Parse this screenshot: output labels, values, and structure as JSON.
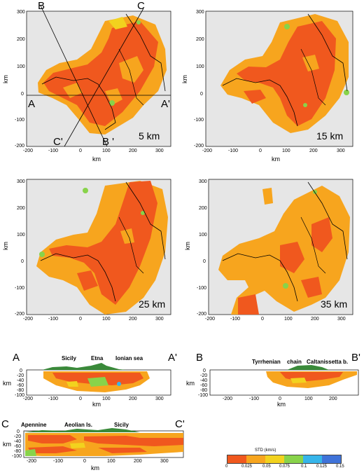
{
  "maps": [
    {
      "id": "map-5km",
      "depth_label": "5 km",
      "x_ticks": [
        "-200",
        "-100",
        "0",
        "100",
        "200",
        "300"
      ],
      "y_ticks": [
        "300",
        "200",
        "100",
        "0",
        "-100",
        "-200"
      ],
      "xlabel": "km",
      "ylabel": "km",
      "section_letters": [
        "A",
        "A'",
        "B",
        "B '",
        "C",
        "C'"
      ]
    },
    {
      "id": "map-15km",
      "depth_label": "15 km",
      "x_ticks": [
        "-200",
        "-100",
        "0",
        "100",
        "200",
        "300"
      ],
      "y_ticks": [
        "300",
        "200",
        "100",
        "0",
        "-100",
        "-200"
      ],
      "xlabel": "km",
      "ylabel": "km"
    },
    {
      "id": "map-25km",
      "depth_label": "25 km",
      "x_ticks": [
        "-200",
        "-100",
        "0",
        "100",
        "200",
        "300"
      ],
      "y_ticks": [
        "300",
        "200",
        "100",
        "0",
        "-100",
        "-200"
      ],
      "xlabel": "km",
      "ylabel": "km"
    },
    {
      "id": "map-35km",
      "depth_label": "35 km",
      "x_ticks": [
        "-200",
        "-100",
        "0",
        "100",
        "200",
        "300"
      ],
      "y_ticks": [
        "300",
        "200",
        "100",
        "0",
        "-100",
        "-200"
      ],
      "xlabel": "km",
      "ylabel": "km"
    }
  ],
  "sections": [
    {
      "id": "section-AA",
      "start": "A",
      "end": "A'",
      "labels": [
        "Sicily",
        "Etna",
        "Ionian sea"
      ],
      "x_ticks": [
        "-200",
        "-100",
        "0",
        "100",
        "200",
        "300"
      ],
      "y_ticks": [
        "0",
        "-20",
        "-40",
        "-60",
        "-80",
        "-100"
      ],
      "xlabel": "km",
      "ylabel": "km"
    },
    {
      "id": "section-BB",
      "start": "B",
      "end": "B'",
      "labels": [
        "Tyrrhenian",
        "chain",
        "Caltanissetta b."
      ],
      "x_ticks": [
        "-200",
        "-100",
        "0",
        "100",
        "200"
      ],
      "y_ticks": [
        "0",
        "-20",
        "-40",
        "-60",
        "-80",
        "-100"
      ],
      "xlabel": "km",
      "ylabel": "km"
    },
    {
      "id": "section-CC",
      "start": "C",
      "end": "C'",
      "labels": [
        "Apennine",
        "Aeolian Is.",
        "Sicily"
      ],
      "x_ticks": [
        "-200",
        "-100",
        "0",
        "100",
        "200",
        "300"
      ],
      "y_ticks": [
        "0",
        "-20",
        "-40",
        "-60",
        "-80",
        "-100"
      ],
      "xlabel": "km",
      "ylabel": "km"
    }
  ],
  "legend": {
    "title": "STD (km/s)",
    "ticks": [
      "0",
      "0.025",
      "0.05",
      "0.075",
      "0.1",
      "0.125",
      "0.15"
    ],
    "colors": [
      "#f0581e",
      "#f7a51e",
      "#f2d21e",
      "#88d34a",
      "#36b5ea",
      "#3f73d9",
      "#7a45d1"
    ]
  },
  "colors": {
    "background": "#e6e6e6",
    "high": "#f0581e",
    "mid": "#f7a51e",
    "low": "#f2d21e",
    "green": "#88d34a",
    "cyan": "#36b5ea",
    "topo": "#3a8a3a"
  }
}
